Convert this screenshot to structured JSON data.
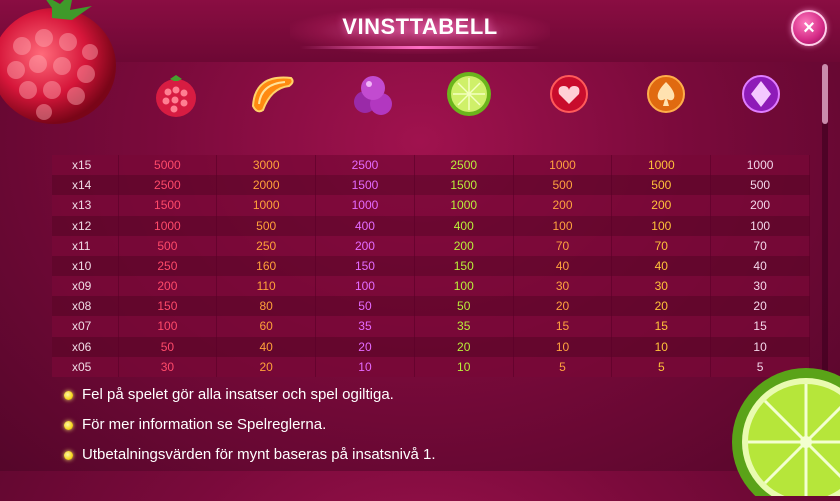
{
  "header": {
    "title": "VINSTTABELL"
  },
  "close_button": {
    "label": "×",
    "icon": "close-icon"
  },
  "symbols": [
    {
      "name": "raspberry",
      "icon": "raspberry-icon"
    },
    {
      "name": "orange-slice",
      "icon": "orange-slice-icon"
    },
    {
      "name": "plums",
      "icon": "plum-icon"
    },
    {
      "name": "lime",
      "icon": "lime-icon"
    },
    {
      "name": "heart-gem",
      "icon": "heart-gem-icon"
    },
    {
      "name": "spade-gem",
      "icon": "spade-gem-icon"
    },
    {
      "name": "diamond-gem",
      "icon": "diamond-gem-icon"
    }
  ],
  "colors": {
    "raspberry": "#ff4a6a",
    "orange": "#ffa13a",
    "plum": "#e56bff",
    "lime": "#b9ef3a",
    "heart": "#ffa23f",
    "spade": "#ffc23a",
    "diamond": "#f3d7ea"
  },
  "paytable": {
    "rows": [
      {
        "mult": "x15",
        "values": [
          "5000",
          "3000",
          "2500",
          "2500",
          "1000",
          "1000",
          "1000"
        ]
      },
      {
        "mult": "x14",
        "values": [
          "2500",
          "2000",
          "1500",
          "1500",
          "500",
          "500",
          "500"
        ]
      },
      {
        "mult": "x13",
        "values": [
          "1500",
          "1000",
          "1000",
          "1000",
          "200",
          "200",
          "200"
        ]
      },
      {
        "mult": "x12",
        "values": [
          "1000",
          "500",
          "400",
          "400",
          "100",
          "100",
          "100"
        ]
      },
      {
        "mult": "x11",
        "values": [
          "500",
          "250",
          "200",
          "200",
          "70",
          "70",
          "70"
        ]
      },
      {
        "mult": "x10",
        "values": [
          "250",
          "160",
          "150",
          "150",
          "40",
          "40",
          "40"
        ]
      },
      {
        "mult": "x09",
        "values": [
          "200",
          "110",
          "100",
          "100",
          "30",
          "30",
          "30"
        ]
      },
      {
        "mult": "x08",
        "values": [
          "150",
          "80",
          "50",
          "50",
          "20",
          "20",
          "20"
        ]
      },
      {
        "mult": "x07",
        "values": [
          "100",
          "60",
          "35",
          "35",
          "15",
          "15",
          "15"
        ]
      },
      {
        "mult": "x06",
        "values": [
          "50",
          "40",
          "20",
          "20",
          "10",
          "10",
          "10"
        ]
      },
      {
        "mult": "x05",
        "values": [
          "30",
          "20",
          "10",
          "10",
          "5",
          "5",
          "5"
        ]
      }
    ]
  },
  "notes": [
    "Fel på spelet gör alla insatser och spel ogiltiga.",
    "För mer information se Spelreglerna.",
    "Utbetalningsvärden för mynt baseras på insatsnivå 1."
  ]
}
